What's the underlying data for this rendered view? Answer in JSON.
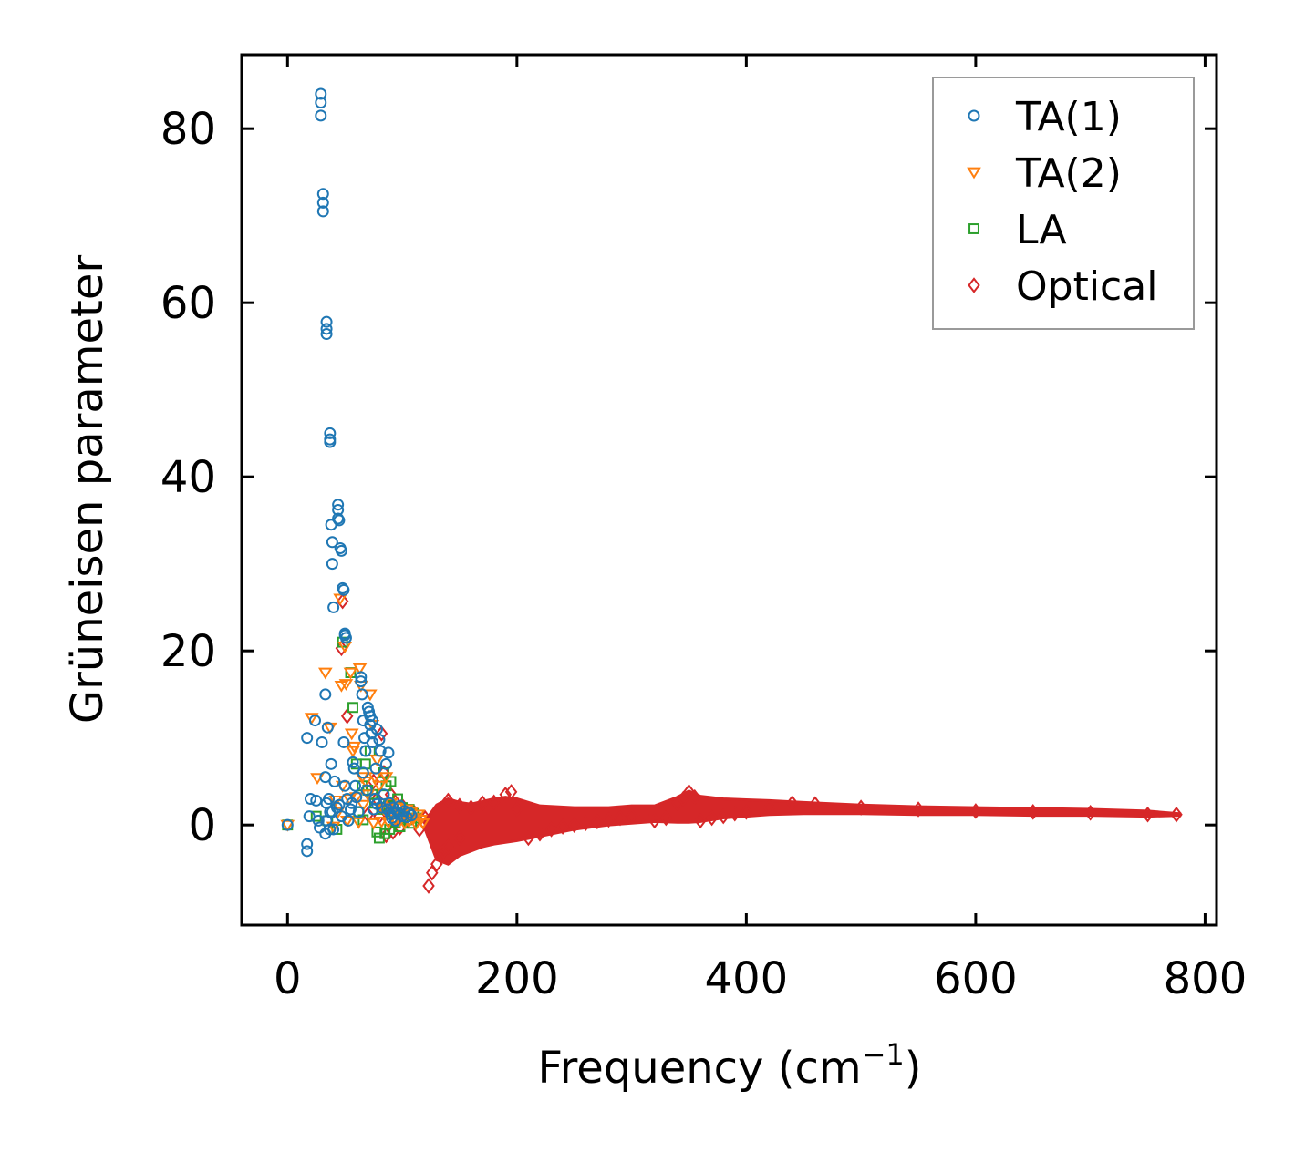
{
  "chart_data": {
    "type": "scatter",
    "title": "",
    "xlabel": "Frequency (cm",
    "xlabel_sup": "−1",
    "xlabel_close": ")",
    "ylabel": "Grüneisen parameter",
    "xlim": [
      -40,
      810
    ],
    "ylim": [
      -11.5,
      88.5
    ],
    "xticks": [
      0,
      200,
      400,
      600,
      800
    ],
    "xtick_labels": [
      "0",
      "200",
      "400",
      "600",
      "800"
    ],
    "yticks": [
      0,
      20,
      40,
      60,
      80
    ],
    "ytick_labels": [
      "0",
      "20",
      "40",
      "60",
      "80"
    ],
    "grid": false,
    "legend_position": "top-right",
    "series": [
      {
        "name": "TA(1)",
        "marker": "circle",
        "color": "#1f77b4",
        "points": [
          [
            0,
            0
          ],
          [
            17,
            -2.2
          ],
          [
            17,
            -3
          ],
          [
            17,
            10
          ],
          [
            19,
            1
          ],
          [
            20,
            3
          ],
          [
            24,
            12
          ],
          [
            25,
            2.8
          ],
          [
            27,
            0.5
          ],
          [
            28,
            -0.3
          ],
          [
            29,
            84
          ],
          [
            29,
            83
          ],
          [
            29,
            81.5
          ],
          [
            30,
            9.5
          ],
          [
            31,
            72.5
          ],
          [
            31,
            71.5
          ],
          [
            31,
            70.5
          ],
          [
            33,
            15
          ],
          [
            33,
            5.5
          ],
          [
            33,
            -1
          ],
          [
            34,
            2.5
          ],
          [
            34,
            0.5
          ],
          [
            34,
            57.8
          ],
          [
            34,
            57
          ],
          [
            34,
            56.4
          ],
          [
            35,
            11.2
          ],
          [
            36,
            3
          ],
          [
            37,
            1.5
          ],
          [
            37,
            -0.5
          ],
          [
            37,
            45
          ],
          [
            37,
            44.3
          ],
          [
            37,
            44
          ],
          [
            38,
            7
          ],
          [
            38,
            34.5
          ],
          [
            39,
            1.5
          ],
          [
            39,
            32.5
          ],
          [
            39,
            30
          ],
          [
            40,
            -0.5
          ],
          [
            40,
            25
          ],
          [
            41,
            5
          ],
          [
            43,
            2
          ],
          [
            44,
            36.8
          ],
          [
            44,
            36.2
          ],
          [
            44,
            35.2
          ],
          [
            45,
            35
          ],
          [
            45,
            2.3
          ],
          [
            46,
            31.8
          ],
          [
            47,
            31.5
          ],
          [
            47,
            1
          ],
          [
            48,
            27.2
          ],
          [
            49,
            27
          ],
          [
            49,
            9.5
          ],
          [
            50,
            21.8
          ],
          [
            50,
            22
          ],
          [
            51,
            21.5
          ],
          [
            50,
            4.5
          ],
          [
            52,
            3
          ],
          [
            53,
            0.5
          ],
          [
            55,
            1.8
          ],
          [
            56,
            2.5
          ],
          [
            57,
            7.2
          ],
          [
            58,
            6.5
          ],
          [
            59,
            4.5
          ],
          [
            60,
            3.2
          ],
          [
            62,
            1.5
          ],
          [
            64,
            17
          ],
          [
            64,
            16.5
          ],
          [
            65,
            15
          ],
          [
            66,
            12
          ],
          [
            66,
            6
          ],
          [
            67,
            10
          ],
          [
            68,
            8.5
          ],
          [
            69,
            4
          ],
          [
            70,
            13.5
          ],
          [
            71,
            13
          ],
          [
            72,
            12.5
          ],
          [
            72,
            11.5
          ],
          [
            73,
            10.5
          ],
          [
            74,
            12
          ],
          [
            74,
            9.5
          ],
          [
            75,
            1.8
          ],
          [
            76,
            3
          ],
          [
            77,
            6.5
          ],
          [
            78,
            2.4
          ],
          [
            78,
            11
          ],
          [
            80,
            9.8
          ],
          [
            81,
            8.5
          ],
          [
            82,
            2
          ],
          [
            84,
            3.5
          ],
          [
            86,
            7
          ],
          [
            87,
            1.8
          ],
          [
            88,
            8.3
          ],
          [
            89,
            2.5
          ],
          [
            90,
            1.2
          ],
          [
            91,
            0.8
          ],
          [
            92,
            2
          ],
          [
            93,
            1.3
          ],
          [
            94,
            0.5
          ],
          [
            96,
            1.5
          ],
          [
            98,
            2.2
          ],
          [
            100,
            1
          ],
          [
            102,
            1.6
          ],
          [
            104,
            0.9
          ],
          [
            106,
            1.4
          ],
          [
            108,
            1.1
          ]
        ]
      },
      {
        "name": "TA(2)",
        "marker": "triangle-down",
        "color": "#ff7f0e",
        "points": [
          [
            0,
            0
          ],
          [
            21,
            12.3
          ],
          [
            26,
            5.4
          ],
          [
            33,
            17.5
          ],
          [
            37,
            11.2
          ],
          [
            40,
            -0.2
          ],
          [
            42,
            2.8
          ],
          [
            44,
            1.5
          ],
          [
            46,
            26
          ],
          [
            47,
            16
          ],
          [
            48,
            4.5
          ],
          [
            50,
            20.5
          ],
          [
            51,
            16.2
          ],
          [
            52,
            0.5
          ],
          [
            54,
            3
          ],
          [
            55,
            17.5
          ],
          [
            56,
            10.5
          ],
          [
            57,
            8.5
          ],
          [
            58,
            9
          ],
          [
            60,
            3.2
          ],
          [
            62,
            0.3
          ],
          [
            63,
            18
          ],
          [
            64,
            16
          ],
          [
            65,
            5.5
          ],
          [
            66,
            2.3
          ],
          [
            68,
            5
          ],
          [
            70,
            3.5
          ],
          [
            72,
            15
          ],
          [
            74,
            11.5
          ],
          [
            75,
            0.2
          ],
          [
            76,
            5.5
          ],
          [
            78,
            7.5
          ],
          [
            80,
            4.5
          ],
          [
            81,
            2
          ],
          [
            82,
            0.4
          ],
          [
            84,
            1.8
          ],
          [
            86,
            5.5
          ],
          [
            88,
            0.3
          ],
          [
            90,
            2.5
          ],
          [
            92,
            1.2
          ],
          [
            94,
            0.6
          ],
          [
            96,
            2
          ],
          [
            98,
            0.5
          ],
          [
            100,
            1.3
          ],
          [
            102,
            0.2
          ],
          [
            104,
            1.8
          ],
          [
            106,
            0.4
          ],
          [
            108,
            1.5
          ],
          [
            110,
            0.8
          ],
          [
            112,
            0.1
          ],
          [
            114,
            1.2
          ],
          [
            116,
            0.6
          ],
          [
            118,
            0.2
          ]
        ]
      },
      {
        "name": "LA",
        "marker": "square",
        "color": "#2ca02c",
        "points": [
          [
            0,
            0
          ],
          [
            25,
            1
          ],
          [
            35,
            0.5
          ],
          [
            43,
            -0.5
          ],
          [
            48,
            21
          ],
          [
            55,
            17.5
          ],
          [
            57,
            13.5
          ],
          [
            60,
            7
          ],
          [
            62,
            1.5
          ],
          [
            65,
            4.5
          ],
          [
            66,
            0.6
          ],
          [
            68,
            7
          ],
          [
            70,
            4
          ],
          [
            72,
            8.5
          ],
          [
            74,
            3.5
          ],
          [
            76,
            2.5
          ],
          [
            78,
            -0.8
          ],
          [
            80,
            -1.5
          ],
          [
            82,
            1.8
          ],
          [
            84,
            6
          ],
          [
            85,
            -1
          ],
          [
            86,
            4.5
          ],
          [
            88,
            2.2
          ],
          [
            89,
            -0.5
          ],
          [
            90,
            5
          ],
          [
            92,
            1.5
          ],
          [
            94,
            0.3
          ],
          [
            96,
            3
          ],
          [
            98,
            -0.2
          ],
          [
            100,
            2
          ],
          [
            102,
            1
          ],
          [
            104,
            0.6
          ],
          [
            106,
            1.8
          ],
          [
            108,
            0.2
          ],
          [
            110,
            1.3
          ],
          [
            112,
            0.8
          ]
        ]
      },
      {
        "name": "Optical",
        "marker": "diamond",
        "color": "#d62728",
        "points": [
          [
            47,
            20.3
          ],
          [
            48,
            25.7
          ],
          [
            52,
            12.5
          ],
          [
            70,
            1.2
          ],
          [
            75,
            5
          ],
          [
            78,
            3
          ],
          [
            80,
            1
          ],
          [
            82,
            10.5
          ],
          [
            84,
            6
          ],
          [
            86,
            -1.2
          ],
          [
            88,
            2
          ],
          [
            90,
            3.5
          ],
          [
            92,
            -0.8
          ],
          [
            94,
            2.6
          ],
          [
            96,
            1.2
          ],
          [
            98,
            -0.3
          ],
          [
            100,
            2.2
          ],
          [
            105,
            0.5
          ],
          [
            110,
            1.5
          ],
          [
            115,
            -0.5
          ],
          [
            120,
            0.8
          ],
          [
            123,
            -7
          ],
          [
            126,
            -5.5
          ],
          [
            130,
            -4.5
          ],
          [
            133,
            -3.5
          ],
          [
            136,
            -3
          ],
          [
            140,
            -2.5
          ],
          [
            145,
            -2
          ],
          [
            150,
            -1.5
          ],
          [
            140,
            2.8
          ],
          [
            150,
            2.2
          ],
          [
            160,
            2
          ],
          [
            170,
            2.5
          ],
          [
            180,
            2.6
          ],
          [
            190,
            3.5
          ],
          [
            195,
            3.8
          ],
          [
            200,
            1.8
          ],
          [
            210,
            -1.5
          ],
          [
            220,
            -1
          ],
          [
            230,
            -0.5
          ],
          [
            240,
            -0.2
          ],
          [
            250,
            0
          ],
          [
            260,
            0.2
          ],
          [
            270,
            0.4
          ],
          [
            280,
            0.6
          ],
          [
            290,
            0.8
          ],
          [
            300,
            1
          ],
          [
            310,
            1.2
          ],
          [
            320,
            0.5
          ],
          [
            330,
            0.8
          ],
          [
            340,
            2.5
          ],
          [
            345,
            3
          ],
          [
            350,
            3.8
          ],
          [
            355,
            3.2
          ],
          [
            360,
            0.5
          ],
          [
            370,
            0.8
          ],
          [
            380,
            1
          ],
          [
            390,
            1.3
          ],
          [
            400,
            1.5
          ],
          [
            420,
            2
          ],
          [
            440,
            2.5
          ],
          [
            460,
            2.4
          ],
          [
            500,
            2
          ],
          [
            550,
            1.8
          ],
          [
            600,
            1.6
          ],
          [
            650,
            1.5
          ],
          [
            700,
            1.4
          ],
          [
            750,
            1.2
          ],
          [
            775,
            1.2
          ]
        ]
      }
    ],
    "optical_band": {
      "name": "Optical",
      "x": [
        120,
        130,
        140,
        150,
        160,
        170,
        180,
        190,
        200,
        220,
        250,
        280,
        300,
        320,
        340,
        350,
        360,
        380,
        400,
        420,
        450,
        500,
        550,
        600,
        650,
        700,
        750,
        778
      ],
      "upper": [
        0.5,
        2.3,
        3,
        2.6,
        2.4,
        2.7,
        3,
        3.2,
        3,
        2.2,
        2,
        2,
        2.2,
        2.2,
        3.2,
        3.9,
        3.3,
        3,
        2.9,
        2.8,
        2.6,
        2.3,
        2.1,
        2,
        1.9,
        1.8,
        1.6,
        1.3
      ],
      "lower": [
        -0.5,
        -4,
        -4.5,
        -3.5,
        -3,
        -2.5,
        -2.2,
        -2,
        -1.8,
        -1.3,
        -0.5,
        0,
        0.2,
        0.4,
        0.3,
        0.3,
        0.4,
        0.8,
        1,
        1.2,
        1.3,
        1.3,
        1.2,
        1.2,
        1.1,
        1.1,
        1,
        1.1
      ]
    }
  }
}
